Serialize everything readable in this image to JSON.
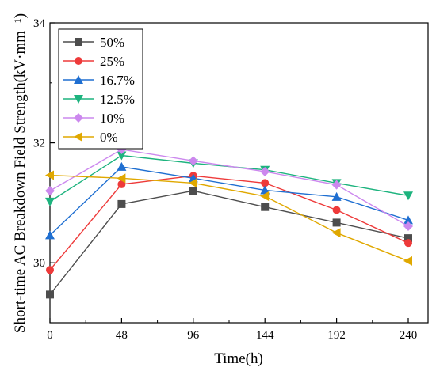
{
  "chart_data": {
    "type": "line",
    "xlabel": "Time(h)",
    "ylabel": "Short-time AC Breakdown Field Strength(kV·mm⁻¹)",
    "x": [
      0,
      48,
      96,
      144,
      192,
      240
    ],
    "x_ticks": [
      "0",
      "48",
      "96",
      "144",
      "192",
      "240"
    ],
    "y_ticks": [
      "30",
      "32",
      "34"
    ],
    "xlim": [
      0,
      240
    ],
    "ylim": [
      29,
      34
    ],
    "grid": false,
    "legend_position": "top-left",
    "series": [
      {
        "name": "50%",
        "color": "#4d4d4d",
        "marker": "square",
        "values": [
          29.47,
          30.98,
          31.2,
          30.93,
          30.67,
          30.41
        ]
      },
      {
        "name": "25%",
        "color": "#ee3a3a",
        "marker": "circle",
        "values": [
          29.88,
          31.31,
          31.45,
          31.33,
          30.88,
          30.33
        ]
      },
      {
        "name": "16.7%",
        "color": "#1f6fd1",
        "marker": "triangle-up",
        "values": [
          30.46,
          31.6,
          31.41,
          31.21,
          31.1,
          30.71
        ]
      },
      {
        "name": "12.5%",
        "color": "#1db37e",
        "marker": "triangle-down",
        "values": [
          31.02,
          31.79,
          31.66,
          31.55,
          31.33,
          31.12
        ]
      },
      {
        "name": "10%",
        "color": "#cc88ee",
        "marker": "diamond",
        "values": [
          31.2,
          31.89,
          31.7,
          31.52,
          31.3,
          30.61
        ]
      },
      {
        "name": "0%",
        "color": "#e0a800",
        "marker": "triangle-left",
        "values": [
          31.46,
          31.41,
          31.33,
          31.11,
          30.5,
          30.03
        ]
      }
    ]
  }
}
